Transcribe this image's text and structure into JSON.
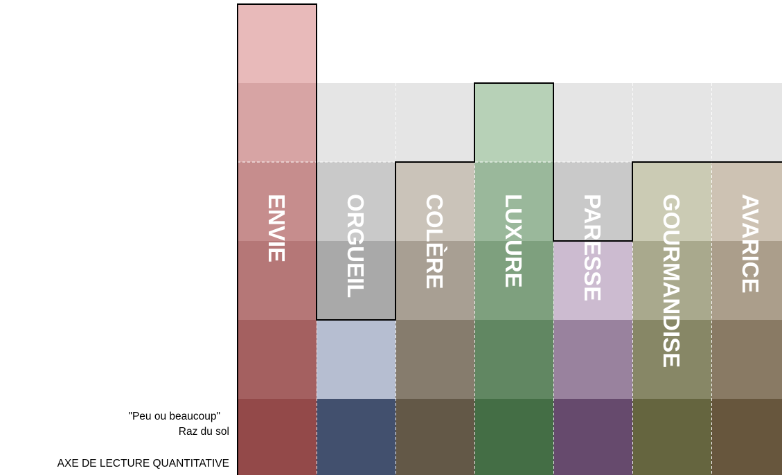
{
  "chart_data": {
    "type": "bar",
    "categories": [
      "ENVIE",
      "ORGUEIL",
      "COLÈRE",
      "LUXURE",
      "PARESSE",
      "GOURMANDISE",
      "AVARICE"
    ],
    "values": [
      6,
      2,
      4,
      5,
      3,
      4,
      4
    ],
    "ylim": [
      0,
      6
    ],
    "grid": true,
    "colors": [
      "#cc6666",
      "#5c6f99",
      "#8a7a63",
      "#5f9960",
      "#8e6797",
      "#8c8c58",
      "#8f7755"
    ],
    "annotations": {
      "quantity": "\"Peu ou beaucoup\"",
      "baseline": "Raz du sol",
      "axis_title": "AXE DE LECTURE QUANTITATIVE"
    }
  }
}
